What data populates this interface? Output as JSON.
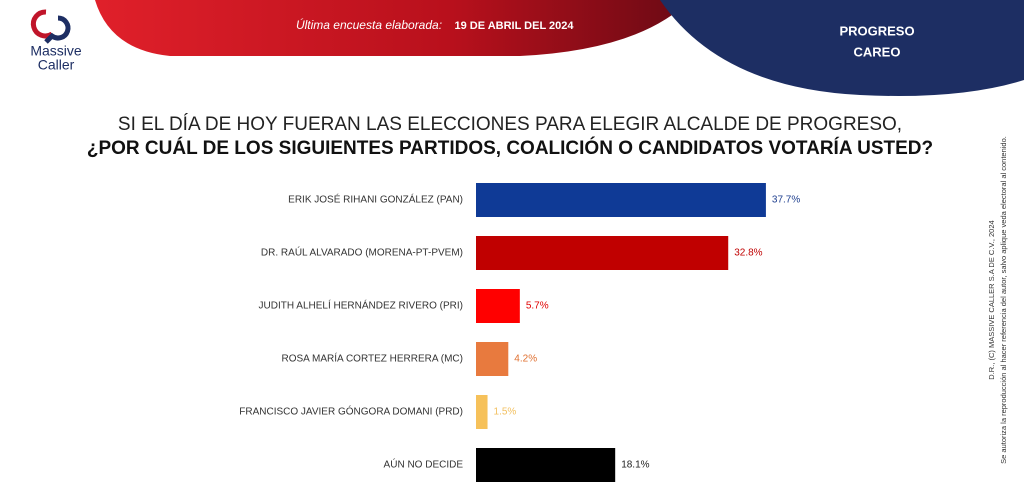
{
  "header": {
    "logo_line1": "Massive",
    "logo_line2": "Caller",
    "survey_label": "Última encuesta elaborada:",
    "survey_date": "19 DE ABRIL DEL 2024",
    "place": "PROGRESO",
    "mode": "CAREO"
  },
  "chart_data": {
    "type": "bar",
    "orientation": "horizontal",
    "title": "SI EL DÍA DE HOY FUERAN LAS ELECCIONES PARA ELEGIR ALCALDE DE PROGRESO,",
    "subtitle": "¿POR CUÁL DE LOS SIGUIENTES PARTIDOS, COALICIÓN O CANDIDATOS VOTARÍA USTED?",
    "categories": [
      "ERIK JOSÉ RIHANI GONZÁLEZ (PAN)",
      "DR. RAÚL ALVARADO (MORENA-PT-PVEM)",
      "JUDITH ALHELÍ HERNÁNDEZ RIVERO (PRI)",
      "ROSA MARÍA CORTEZ HERRERA (MC)",
      "FRANCISCO JAVIER GÓNGORA DOMANI (PRD)",
      "AÚN NO DECIDE"
    ],
    "values": [
      37.7,
      32.8,
      5.7,
      4.2,
      1.5,
      18.1
    ],
    "value_labels": [
      "37.7%",
      "32.8%",
      "5.7%",
      "4.2%",
      "1.5%",
      "18.1%"
    ],
    "colors": [
      "#0f3a96",
      "#c00000",
      "#ff0000",
      "#e87a3e",
      "#f6c15a",
      "#000000"
    ],
    "label_colors": [
      "#1f3f8f",
      "#c00000",
      "#e00000",
      "#e07030",
      "#f2c060",
      "#222222"
    ]
  },
  "footer": {
    "copyright": "D.R., (C) MASSIVE CALLER S.A DE C.V., 2024",
    "notice": "Se autoriza la reproducción al hacer referencia del autor, salvo aplique veda electoral al contenido."
  }
}
